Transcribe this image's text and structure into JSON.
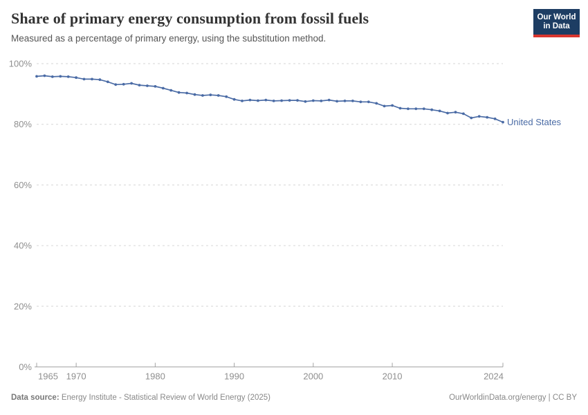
{
  "header": {
    "title": "Share of primary energy consumption from fossil fuels",
    "subtitle": "Measured as a percentage of primary energy, using the substitution method.",
    "logo": {
      "line1": "Our World",
      "line2": "in Data",
      "bg_color": "#1d3d63",
      "accent_color": "#d9362f"
    }
  },
  "chart_data": {
    "type": "line",
    "title": "Share of primary energy consumption from fossil fuels",
    "xlabel": "",
    "ylabel": "",
    "xlim": [
      1965,
      2024
    ],
    "ylim": [
      0,
      100
    ],
    "grid": "horizontal-dashed",
    "legend_position": "end-of-line-label",
    "line_color": "#4a6ba5",
    "x_ticks": [
      {
        "value": 1965,
        "label": "1965"
      },
      {
        "value": 1970,
        "label": "1970"
      },
      {
        "value": 1980,
        "label": "1980"
      },
      {
        "value": 1990,
        "label": "1990"
      },
      {
        "value": 2000,
        "label": "2000"
      },
      {
        "value": 2010,
        "label": "2010"
      },
      {
        "value": 2024,
        "label": "2024"
      }
    ],
    "y_ticks": [
      {
        "value": 0,
        "label": "0%"
      },
      {
        "value": 20,
        "label": "20%"
      },
      {
        "value": 40,
        "label": "40%"
      },
      {
        "value": 60,
        "label": "60%"
      },
      {
        "value": 80,
        "label": "80%"
      },
      {
        "value": 100,
        "label": "100%"
      }
    ],
    "series": [
      {
        "name": "United States",
        "color": "#4a6ba5",
        "x": [
          1965,
          1966,
          1967,
          1968,
          1969,
          1970,
          1971,
          1972,
          1973,
          1974,
          1975,
          1976,
          1977,
          1978,
          1979,
          1980,
          1981,
          1982,
          1983,
          1984,
          1985,
          1986,
          1987,
          1988,
          1989,
          1990,
          1991,
          1992,
          1993,
          1994,
          1995,
          1996,
          1997,
          1998,
          1999,
          2000,
          2001,
          2002,
          2003,
          2004,
          2005,
          2006,
          2007,
          2008,
          2009,
          2010,
          2011,
          2012,
          2013,
          2014,
          2015,
          2016,
          2017,
          2018,
          2019,
          2020,
          2021,
          2022,
          2023,
          2024
        ],
        "values": [
          95.8,
          96.0,
          95.7,
          95.8,
          95.7,
          95.4,
          94.9,
          94.9,
          94.7,
          94.0,
          93.1,
          93.2,
          93.5,
          92.9,
          92.7,
          92.5,
          91.9,
          91.2,
          90.5,
          90.3,
          89.8,
          89.5,
          89.7,
          89.5,
          89.1,
          88.2,
          87.7,
          88.0,
          87.8,
          88.0,
          87.7,
          87.8,
          87.9,
          87.9,
          87.5,
          87.8,
          87.7,
          88.0,
          87.6,
          87.7,
          87.7,
          87.4,
          87.4,
          86.9,
          86.0,
          86.2,
          85.3,
          85.1,
          85.1,
          85.1,
          84.8,
          84.4,
          83.7,
          84.0,
          83.5,
          82.1,
          82.6,
          82.3,
          81.8,
          80.7
        ]
      }
    ]
  },
  "footer": {
    "datasource_label": "Data source:",
    "datasource_text": " Energy Institute - Statistical Review of World Energy (2025)",
    "rights": "OurWorldinData.org/energy | CC BY"
  }
}
